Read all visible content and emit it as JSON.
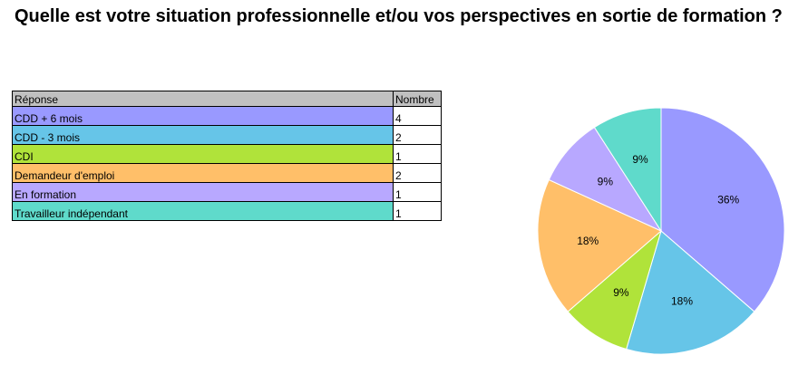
{
  "chart_data": {
    "type": "pie",
    "title": "Quelle est votre situation professionnelle et/ou vos perspectives en sortie de formation ?",
    "values": [
      36,
      18,
      9,
      18,
      9,
      9
    ],
    "value_labels": [
      "36%",
      "18%",
      "9%",
      "18%",
      "9%",
      "9%"
    ],
    "colors": [
      "#9999ff",
      "#66c5e8",
      "#b0e33a",
      "#ffbf69",
      "#b8a8ff",
      "#5fdacb"
    ]
  },
  "table": {
    "header": [
      "Réponse",
      "Nombre"
    ],
    "rows": [
      [
        "CDD + 6 mois",
        "4"
      ],
      [
        "CDD - 3 mois",
        "2"
      ],
      [
        "CDI",
        "1"
      ],
      [
        "Demandeur d'emploi",
        "2"
      ],
      [
        "En formation",
        "1"
      ],
      [
        "Travailleur indépendant",
        "1"
      ]
    ]
  }
}
